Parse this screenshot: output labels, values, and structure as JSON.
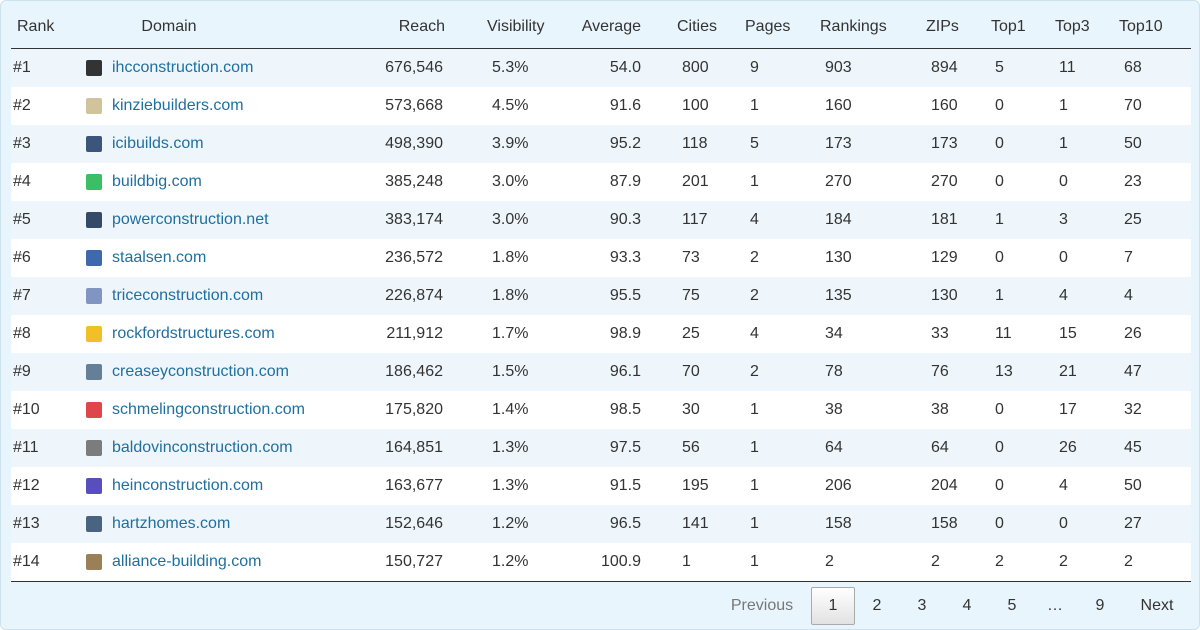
{
  "table": {
    "header": [
      "Rank",
      "Domain",
      "Reach",
      "Visibility",
      "Average",
      "Cities",
      "Pages",
      "Rankings",
      "ZIPs",
      "Top1",
      "Top3",
      "Top10"
    ],
    "rows": [
      [
        "#1",
        "ihcconstruction.com",
        "676,546",
        "5.3%",
        "54.0",
        "800",
        "9",
        "903",
        "894",
        "5",
        "11",
        "68"
      ],
      [
        "#2",
        "kinziebuilders.com",
        "573,668",
        "4.5%",
        "91.6",
        "100",
        "1",
        "160",
        "160",
        "0",
        "1",
        "70"
      ],
      [
        "#3",
        "icibuilds.com",
        "498,390",
        "3.9%",
        "95.2",
        "118",
        "5",
        "173",
        "173",
        "0",
        "1",
        "50"
      ],
      [
        "#4",
        "buildbig.com",
        "385,248",
        "3.0%",
        "87.9",
        "201",
        "1",
        "270",
        "270",
        "0",
        "0",
        "23"
      ],
      [
        "#5",
        "powerconstruction.net",
        "383,174",
        "3.0%",
        "90.3",
        "117",
        "4",
        "184",
        "181",
        "1",
        "3",
        "25"
      ],
      [
        "#6",
        "staalsen.com",
        "236,572",
        "1.8%",
        "93.3",
        "73",
        "2",
        "130",
        "129",
        "0",
        "0",
        "7"
      ],
      [
        "#7",
        "triceconstruction.com",
        "226,874",
        "1.8%",
        "95.5",
        "75",
        "2",
        "135",
        "130",
        "1",
        "4",
        "4"
      ],
      [
        "#8",
        "rockfordstructures.com",
        "211,912",
        "1.7%",
        "98.9",
        "25",
        "4",
        "34",
        "33",
        "11",
        "15",
        "26"
      ],
      [
        "#9",
        "creaseyconstruction.com",
        "186,462",
        "1.5%",
        "96.1",
        "70",
        "2",
        "78",
        "76",
        "13",
        "21",
        "47"
      ],
      [
        "#10",
        "schmelingconstruction.com",
        "175,820",
        "1.4%",
        "98.5",
        "30",
        "1",
        "38",
        "38",
        "0",
        "17",
        "32"
      ],
      [
        "#11",
        "baldovinconstruction.com",
        "164,851",
        "1.3%",
        "97.5",
        "56",
        "1",
        "64",
        "64",
        "0",
        "26",
        "45"
      ],
      [
        "#12",
        "heinconstruction.com",
        "163,677",
        "1.3%",
        "91.5",
        "195",
        "1",
        "206",
        "204",
        "0",
        "4",
        "50"
      ],
      [
        "#13",
        "hartzhomes.com",
        "152,646",
        "1.2%",
        "96.5",
        "141",
        "1",
        "158",
        "158",
        "0",
        "0",
        "27"
      ],
      [
        "#14",
        "alliance-building.com",
        "150,727",
        "1.2%",
        "100.9",
        "1",
        "1",
        "2",
        "2",
        "2",
        "2",
        "2"
      ]
    ]
  },
  "pagination": {
    "items": [
      "Previous",
      "1",
      "2",
      "3",
      "4",
      "5",
      "…",
      "9",
      "Next"
    ]
  }
}
